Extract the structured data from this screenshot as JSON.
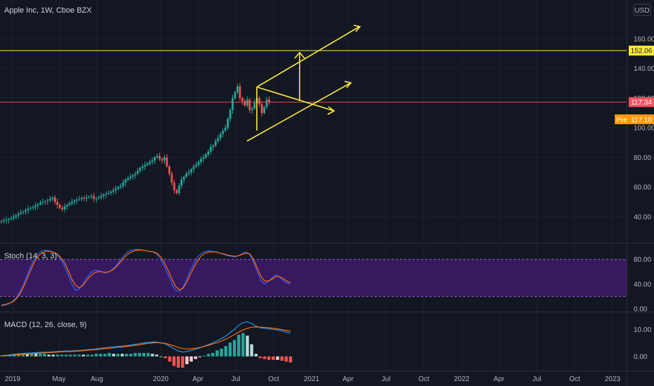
{
  "header": {
    "title": "Apple Inc, 1W, Cboe BZX",
    "currency": "USD"
  },
  "colors": {
    "background": "#131722",
    "up": "#26a69a",
    "down": "#ef5350",
    "annotation": "#ffeb3b",
    "price_line": "#f7525f",
    "pre_badge": "#ff9800",
    "stoch_k": "#2962ff",
    "stoch_d": "#ff6d00",
    "stoch_band": "#3f1a6b",
    "macd_line": "#2196f3",
    "signal_line": "#ff6d00"
  },
  "badges": {
    "level": "152.06",
    "last": "117.34",
    "pre_label": "Pre",
    "pre_value": "117.10"
  },
  "chart_data": [
    {
      "type": "candlestick",
      "title": "Apple Inc, 1W, Cboe BZX",
      "ylim": [
        30,
        172
      ],
      "y_ticks": [
        "40.00",
        "60.00",
        "80.00",
        "100.00",
        "120.00",
        "140.00",
        "160.00"
      ],
      "x_ticks": [
        "2019",
        "May",
        "Aug",
        "2020",
        "Apr",
        "Jul",
        "Oct",
        "2021",
        "Apr",
        "Jul",
        "Oct",
        "2022",
        "Apr",
        "Jul",
        "Oct",
        "2023"
      ],
      "horizontal_lines": [
        152.06,
        117.34
      ],
      "weekly_close": [
        37,
        37.5,
        38,
        38.4,
        39,
        40,
        41,
        42,
        43,
        43.5,
        44.5,
        45.5,
        46,
        46.5,
        47.5,
        48.5,
        49.5,
        50,
        50.5,
        51,
        52,
        53,
        50,
        48,
        46,
        45,
        47,
        48,
        49,
        50,
        51,
        51.5,
        52,
        52.8,
        52.3,
        53,
        53.5,
        54,
        52,
        52.5,
        53,
        54,
        55,
        55.5,
        56,
        57,
        58,
        59,
        60,
        61,
        63,
        65,
        66,
        67,
        68,
        69,
        71,
        73,
        74,
        75,
        76,
        77,
        78,
        80,
        81,
        79,
        78,
        80,
        74,
        69,
        63,
        58,
        56,
        61,
        65,
        67,
        69,
        70,
        72,
        74,
        75,
        77,
        79,
        80,
        82,
        84,
        87,
        88,
        91,
        93,
        96,
        98,
        100,
        106,
        112,
        120,
        124,
        128,
        120,
        118,
        115,
        119,
        112,
        113,
        117,
        120,
        116,
        110,
        114,
        119,
        117.34
      ]
    },
    {
      "type": "line",
      "title": "Stoch (14, 3, 3)",
      "ylim": [
        0,
        100
      ],
      "y_ticks": [
        "0.00",
        "40.00",
        "80.00"
      ],
      "band": [
        20,
        80
      ],
      "series": [
        {
          "name": "%K",
          "values": [
            5,
            6,
            8,
            12,
            18,
            28,
            40,
            55,
            70,
            82,
            90,
            94,
            95,
            94,
            92,
            88,
            80,
            70,
            55,
            40,
            30,
            32,
            40,
            50,
            58,
            62,
            62,
            60,
            58,
            60,
            64,
            70,
            78,
            86,
            92,
            95,
            96,
            96,
            95,
            94,
            93,
            92,
            88,
            80,
            68,
            55,
            40,
            30,
            28,
            35,
            48,
            62,
            74,
            84,
            90,
            93,
            94,
            93,
            92,
            90,
            88,
            86,
            85,
            84,
            86,
            90,
            92,
            88,
            76,
            60,
            46,
            40,
            44,
            50,
            55,
            52,
            46,
            42,
            40
          ]
        },
        {
          "name": "%D",
          "values": [
            6,
            7,
            9,
            11,
            16,
            24,
            36,
            50,
            64,
            77,
            86,
            91,
            93,
            93,
            92,
            89,
            83,
            75,
            62,
            48,
            38,
            34,
            38,
            46,
            53,
            58,
            60,
            60,
            59,
            60,
            63,
            68,
            75,
            82,
            88,
            92,
            94,
            95,
            95,
            94,
            93,
            92,
            90,
            84,
            74,
            62,
            48,
            36,
            31,
            33,
            43,
            56,
            68,
            78,
            86,
            90,
            92,
            92,
            92,
            90,
            89,
            87,
            86,
            85,
            86,
            88,
            90,
            89,
            80,
            66,
            53,
            45,
            45,
            48,
            52,
            52,
            49,
            45,
            42
          ]
        }
      ]
    },
    {
      "type": "bar",
      "title": "MACD (12, 26, close, 9)",
      "ylim": [
        -4.2,
        14.5
      ],
      "y_ticks": [
        "0.00",
        "10.00"
      ],
      "series": [
        {
          "name": "MACD",
          "values": [
            0.3,
            0.4,
            0.6,
            0.8,
            1.0,
            1.1,
            1.2,
            1.3,
            1.4,
            1.5,
            1.6,
            1.6,
            1.7,
            1.8,
            1.9,
            2.0,
            2.0,
            2.1,
            2.2,
            2.3,
            2.5,
            2.6,
            2.8,
            3.0,
            3.2,
            3.4,
            3.5,
            3.7,
            3.8,
            4.0,
            4.2,
            4.5,
            4.7,
            5.0,
            5.2,
            5.3,
            5.3,
            5.0,
            4.6,
            3.8,
            2.8,
            2.0,
            1.6,
            1.8,
            2.2,
            2.7,
            3.2,
            3.8,
            4.4,
            5.0,
            5.8,
            6.6,
            7.6,
            8.8,
            10.0,
            11.5,
            12.5,
            12.8,
            12.2,
            11.2,
            10.6,
            10.4,
            10.2,
            10.0,
            9.8,
            9.4,
            9.0,
            8.6
          ]
        },
        {
          "name": "Signal",
          "values": [
            0.2,
            0.3,
            0.4,
            0.5,
            0.7,
            0.8,
            0.9,
            1.0,
            1.1,
            1.2,
            1.3,
            1.4,
            1.5,
            1.6,
            1.7,
            1.8,
            1.8,
            1.9,
            2.0,
            2.1,
            2.3,
            2.4,
            2.5,
            2.7,
            2.9,
            3.0,
            3.2,
            3.4,
            3.5,
            3.7,
            3.9,
            4.1,
            4.3,
            4.6,
            4.8,
            5.0,
            5.1,
            5.0,
            4.8,
            4.4,
            3.9,
            3.3,
            2.9,
            2.7,
            2.8,
            3.0,
            3.3,
            3.7,
            4.1,
            4.6,
            5.1,
            5.7,
            6.4,
            7.2,
            8.1,
            9.0,
            9.8,
            10.4,
            10.8,
            10.9,
            10.8,
            10.7,
            10.6,
            10.4,
            10.2,
            9.9,
            9.6,
            9.3
          ]
        }
      ]
    }
  ]
}
